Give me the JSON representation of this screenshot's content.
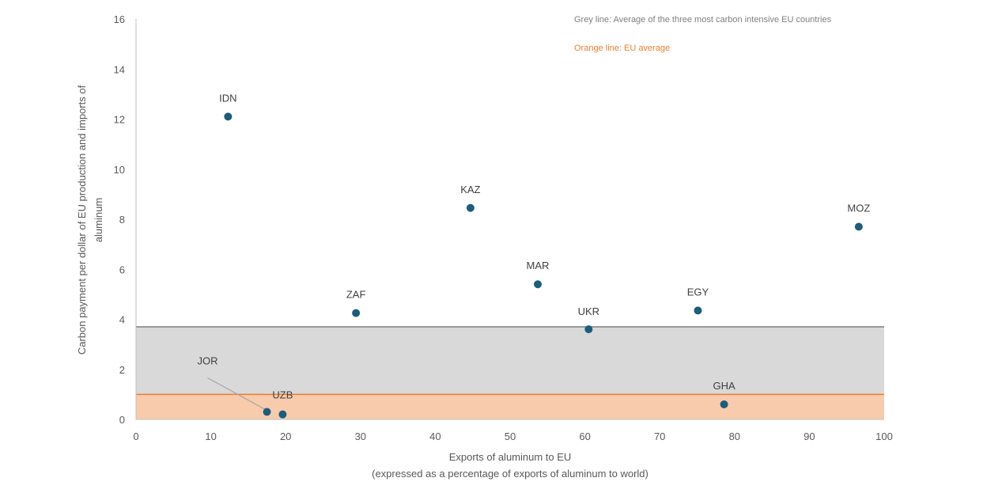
{
  "notes": {
    "grey": "Grey line: Average of the three most carbon intensive EU countries",
    "orange": "Orange line: EU average"
  },
  "colors": {
    "point": "#1B5E7B",
    "grey_band": "#D9D9D9",
    "grey_line": "#7F7F7F",
    "orange_band": "#F8CBAD",
    "orange_line": "#ED7D31",
    "axis": "#BFBFBF"
  },
  "chart_data": {
    "type": "scatter",
    "xlabel_line1": "Exports of aluminum to EU",
    "xlabel_line2": "(expressed as a percentage of exports of aluminum to world)",
    "ylabel_line1": "Carbon payment per dollar of EU production and imports of",
    "ylabel_line2": "aluminum",
    "xlim": [
      0,
      100
    ],
    "ylim": [
      0,
      16
    ],
    "xticks": [
      0,
      10,
      20,
      30,
      40,
      50,
      60,
      70,
      80,
      90,
      100
    ],
    "yticks": [
      0,
      2,
      4,
      6,
      8,
      10,
      12,
      14,
      16
    ],
    "grid": false,
    "reference_lines": [
      {
        "label": "Average of the three most carbon intensive EU countries",
        "y": 3.7,
        "color": "grey"
      },
      {
        "label": "EU average",
        "y": 1.0,
        "color": "orange"
      }
    ],
    "points": [
      {
        "label": "IDN",
        "x": 12.3,
        "y": 12.1
      },
      {
        "label": "KAZ",
        "x": 44.7,
        "y": 8.45
      },
      {
        "label": "MOZ",
        "x": 96.6,
        "y": 7.7
      },
      {
        "label": "MAR",
        "x": 53.7,
        "y": 5.4
      },
      {
        "label": "ZAF",
        "x": 29.4,
        "y": 4.25
      },
      {
        "label": "EGY",
        "x": 75.1,
        "y": 4.35
      },
      {
        "label": "UKR",
        "x": 60.5,
        "y": 3.6
      },
      {
        "label": "GHA",
        "x": 78.6,
        "y": 0.6
      },
      {
        "label": "JOR",
        "x": 17.5,
        "y": 0.3
      },
      {
        "label": "UZB",
        "x": 19.6,
        "y": 0.2
      }
    ]
  }
}
